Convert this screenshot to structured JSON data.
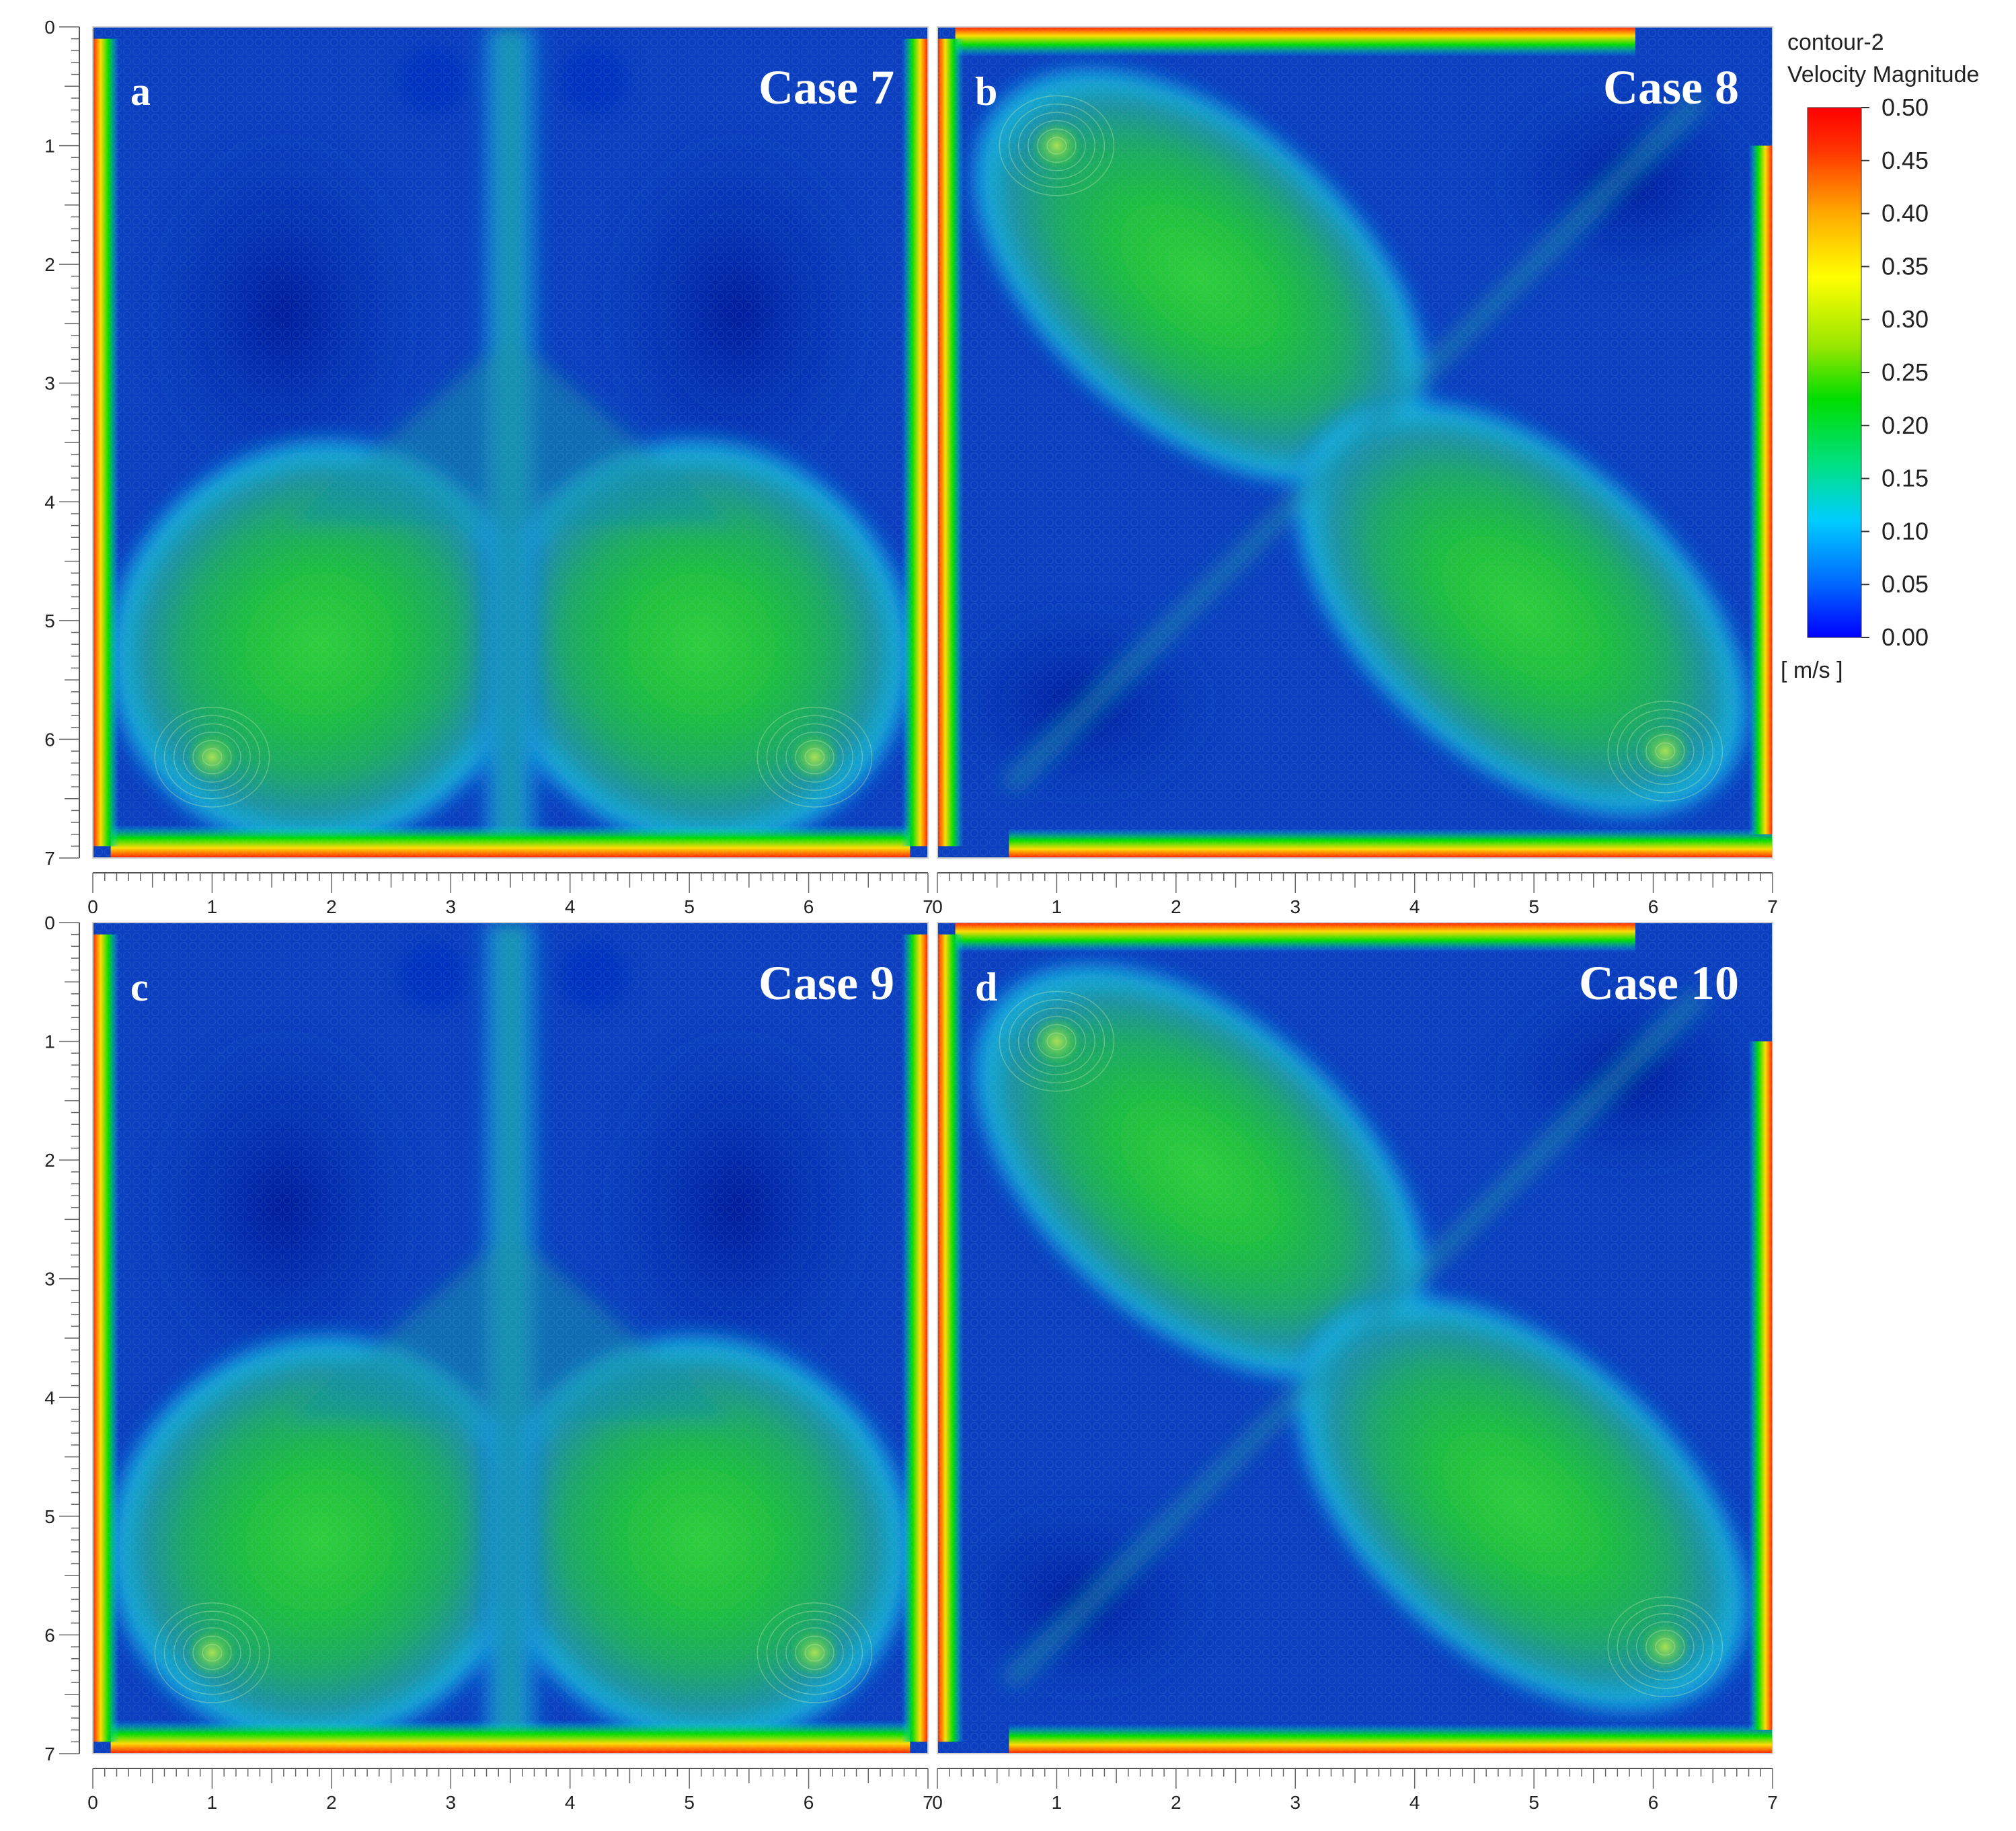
{
  "legend": {
    "title_line1": "contour-2",
    "title_line2": "Velocity Magnitude",
    "unit": "[ m/s ]",
    "range": [
      0.0,
      0.5
    ],
    "ticks": [
      "0.50",
      "0.45",
      "0.40",
      "0.35",
      "0.30",
      "0.25",
      "0.20",
      "0.15",
      "0.10",
      "0.05",
      "0.00"
    ],
    "colors": [
      "#0000ff",
      "#0066ff",
      "#00ccff",
      "#00e08a",
      "#00dd00",
      "#99e600",
      "#ffff00",
      "#ffaa00",
      "#ff3300",
      "#ff0000"
    ]
  },
  "chart_data": [
    {
      "type": "heatmap",
      "panel_label": "a",
      "title": "Case 7",
      "pattern": "symmetric",
      "xlim": [
        0,
        7
      ],
      "ylim": [
        0,
        7
      ],
      "x_ticks": [
        "0",
        "1",
        "2",
        "3",
        "4",
        "5",
        "6",
        "7"
      ],
      "y_ticks": [
        "0",
        "1",
        "2",
        "3",
        "4",
        "5",
        "6",
        "7"
      ],
      "vortex_centers": [
        {
          "x": 1.0,
          "y": 6.15,
          "value": 0.27
        },
        {
          "x": 6.05,
          "y": 6.15,
          "value": 0.27
        }
      ],
      "colorbar_range": [
        0.0,
        0.5
      ]
    },
    {
      "type": "heatmap",
      "panel_label": "b",
      "title": "Case 8",
      "pattern": "diagonal",
      "xlim": [
        0,
        7
      ],
      "ylim": [
        0,
        7
      ],
      "x_ticks": [
        "0",
        "1",
        "2",
        "3",
        "4",
        "5",
        "6",
        "7"
      ],
      "y_ticks": [
        "0",
        "1",
        "2",
        "3",
        "4",
        "5",
        "6",
        "7"
      ],
      "vortex_centers": [
        {
          "x": 1.0,
          "y": 1.0,
          "value": 0.25
        },
        {
          "x": 6.1,
          "y": 6.1,
          "value": 0.27
        }
      ],
      "colorbar_range": [
        0.0,
        0.5
      ]
    },
    {
      "type": "heatmap",
      "panel_label": "c",
      "title": "Case 9",
      "pattern": "symmetric",
      "xlim": [
        0,
        7
      ],
      "ylim": [
        0,
        7
      ],
      "x_ticks": [
        "0",
        "1",
        "2",
        "3",
        "4",
        "5",
        "6",
        "7"
      ],
      "y_ticks": [
        "0",
        "1",
        "2",
        "3",
        "4",
        "5",
        "6",
        "7"
      ],
      "vortex_centers": [
        {
          "x": 1.0,
          "y": 6.15,
          "value": 0.28
        },
        {
          "x": 6.05,
          "y": 6.15,
          "value": 0.28
        }
      ],
      "colorbar_range": [
        0.0,
        0.5
      ]
    },
    {
      "type": "heatmap",
      "panel_label": "d",
      "title": "Case 10",
      "pattern": "diagonal",
      "xlim": [
        0,
        7
      ],
      "ylim": [
        0,
        7
      ],
      "x_ticks": [
        "0",
        "1",
        "2",
        "3",
        "4",
        "5",
        "6",
        "7"
      ],
      "y_ticks": [
        "0",
        "1",
        "2",
        "3",
        "4",
        "5",
        "6",
        "7"
      ],
      "vortex_centers": [
        {
          "x": 1.0,
          "y": 1.0,
          "value": 0.27
        },
        {
          "x": 6.1,
          "y": 6.1,
          "value": 0.26
        }
      ],
      "colorbar_range": [
        0.0,
        0.5
      ]
    }
  ]
}
